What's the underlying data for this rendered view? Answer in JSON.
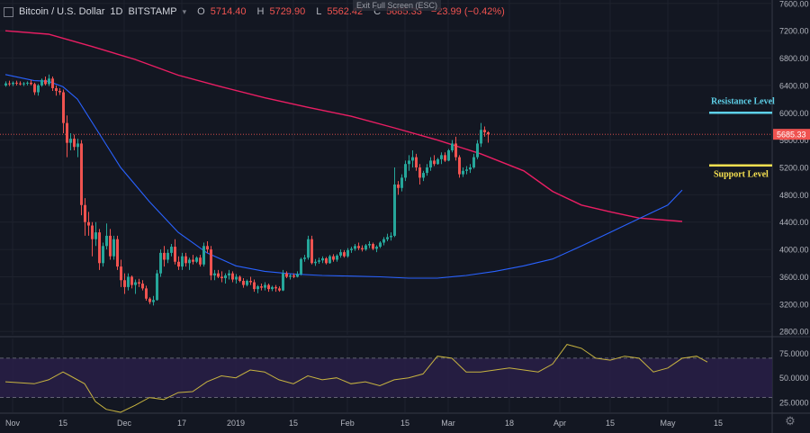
{
  "header": {
    "symbol": "Bitcoin / U.S. Dollar",
    "interval": "1D",
    "exchange": "BITSTAMP",
    "open_label": "O",
    "open": "5714.40",
    "high_label": "H",
    "high": "5729.90",
    "low_label": "L",
    "low": "5562.42",
    "close_label": "C",
    "close": "5685.33",
    "change": "−23.99 (−0.42%)"
  },
  "tooltip": "Exit Full Screen (ESC)",
  "colors": {
    "background": "#131722",
    "up": "#26a69a",
    "down": "#ef5350",
    "ma_fast": "#2962ff",
    "ma_slow": "#e91e63",
    "rsi": "#c8b440",
    "rsi_band": "#2a1f4a",
    "resistance": "#5ed0e8",
    "support": "#f5e050",
    "price_tag": "#ef5350"
  },
  "annotations": {
    "resistance": {
      "label": "Resistance Level",
      "price": 6000
    },
    "support": {
      "label": "Support Level",
      "price": 5230
    }
  },
  "price_tag": "5685.33",
  "chart_data": {
    "type": "candlestick",
    "price_axis": {
      "ticks": [
        "7600.00",
        "7200.00",
        "6800.00",
        "6400.00",
        "6000.00",
        "5600.00",
        "5200.00",
        "4800.00",
        "4400.00",
        "4000.00",
        "3600.00",
        "3200.00",
        "2800.00"
      ],
      "tick_values": [
        7600,
        7200,
        6800,
        6400,
        6000,
        5600,
        5200,
        4800,
        4400,
        4000,
        3600,
        3200,
        2800
      ],
      "range": [
        2750,
        7650
      ]
    },
    "time_axis": {
      "labels": [
        "Nov",
        "15",
        "Dec",
        "17",
        "2019",
        "15",
        "Feb",
        "15",
        "Mar",
        "18",
        "Apr",
        "15",
        "May",
        "15"
      ],
      "label_days": [
        2,
        16,
        33,
        49,
        64,
        80,
        95,
        111,
        123,
        140,
        154,
        168,
        184,
        198
      ],
      "start": "2018-10-30",
      "days": 219
    },
    "candles": [
      [
        6400,
        6460,
        6380,
        6430
      ],
      [
        6430,
        6470,
        6390,
        6420
      ],
      [
        6420,
        6460,
        6390,
        6440
      ],
      [
        6440,
        6470,
        6400,
        6430
      ],
      [
        6430,
        6460,
        6400,
        6420
      ],
      [
        6420,
        6450,
        6390,
        6430
      ],
      [
        6430,
        6460,
        6400,
        6440
      ],
      [
        6440,
        6480,
        6400,
        6420
      ],
      [
        6420,
        6440,
        6260,
        6300
      ],
      [
        6300,
        6420,
        6250,
        6400
      ],
      [
        6400,
        6500,
        6380,
        6480
      ],
      [
        6480,
        6530,
        6400,
        6420
      ],
      [
        6420,
        6560,
        6390,
        6500
      ],
      [
        6500,
        6530,
        6320,
        6360
      ],
      [
        6360,
        6400,
        6250,
        6320
      ],
      [
        6320,
        6360,
        6260,
        6300
      ],
      [
        6300,
        6340,
        5700,
        5850
      ],
      [
        5850,
        5960,
        5350,
        5560
      ],
      [
        5560,
        5700,
        5450,
        5620
      ],
      [
        5620,
        5680,
        5450,
        5500
      ],
      [
        5500,
        5620,
        5350,
        5550
      ],
      [
        5550,
        5600,
        4500,
        4650
      ],
      [
        4650,
        4750,
        4200,
        4400
      ],
      [
        4400,
        4550,
        4200,
        4350
      ],
      [
        4350,
        4400,
        3900,
        4150
      ],
      [
        4150,
        4400,
        4050,
        4250
      ],
      [
        4250,
        4300,
        3700,
        3800
      ],
      [
        3800,
        4100,
        3750,
        4050
      ],
      [
        4050,
        4380,
        4000,
        4200
      ],
      [
        4200,
        4300,
        3850,
        3900
      ],
      [
        3900,
        4200,
        3850,
        4150
      ],
      [
        4150,
        4200,
        3700,
        3750
      ],
      [
        3750,
        3850,
        3450,
        3550
      ],
      [
        3550,
        3650,
        3350,
        3450
      ],
      [
        3450,
        3650,
        3400,
        3600
      ],
      [
        3600,
        3620,
        3430,
        3480
      ],
      [
        3480,
        3560,
        3350,
        3520
      ],
      [
        3520,
        3570,
        3450,
        3500
      ],
      [
        3500,
        3550,
        3400,
        3430
      ],
      [
        3430,
        3470,
        3250,
        3280
      ],
      [
        3280,
        3300,
        3200,
        3230
      ],
      [
        3230,
        3320,
        3180,
        3260
      ],
      [
        3260,
        3700,
        3250,
        3650
      ],
      [
        3650,
        4000,
        3600,
        3950
      ],
      [
        3950,
        4050,
        3750,
        3850
      ],
      [
        3850,
        4000,
        3800,
        3950
      ],
      [
        3950,
        4080,
        3900,
        4040
      ],
      [
        4040,
        4150,
        3780,
        3820
      ],
      [
        3820,
        3900,
        3700,
        3750
      ],
      [
        3750,
        3950,
        3700,
        3900
      ],
      [
        3900,
        3950,
        3750,
        3800
      ],
      [
        3800,
        3880,
        3700,
        3850
      ],
      [
        3850,
        3920,
        3780,
        3820
      ],
      [
        3820,
        3900,
        3800,
        3880
      ],
      [
        3880,
        3920,
        3750,
        3780
      ],
      [
        3780,
        4100,
        3750,
        4050
      ],
      [
        4050,
        4120,
        3950,
        4000
      ],
      [
        4000,
        4050,
        3550,
        3620
      ],
      [
        3620,
        3700,
        3550,
        3650
      ],
      [
        3650,
        3700,
        3580,
        3600
      ],
      [
        3600,
        3680,
        3520,
        3580
      ],
      [
        3580,
        3650,
        3500,
        3620
      ],
      [
        3620,
        3700,
        3560,
        3650
      ],
      [
        3650,
        3680,
        3520,
        3560
      ],
      [
        3560,
        3640,
        3500,
        3600
      ],
      [
        3600,
        3620,
        3520,
        3540
      ],
      [
        3540,
        3580,
        3440,
        3480
      ],
      [
        3480,
        3560,
        3460,
        3540
      ],
      [
        3540,
        3600,
        3480,
        3520
      ],
      [
        3520,
        3560,
        3380,
        3420
      ],
      [
        3420,
        3480,
        3360,
        3460
      ],
      [
        3460,
        3500,
        3400,
        3440
      ],
      [
        3440,
        3520,
        3400,
        3480
      ],
      [
        3480,
        3500,
        3380,
        3420
      ],
      [
        3420,
        3470,
        3390,
        3450
      ],
      [
        3450,
        3480,
        3380,
        3430
      ],
      [
        3430,
        3460,
        3380,
        3400
      ],
      [
        3400,
        3700,
        3390,
        3650
      ],
      [
        3650,
        3680,
        3580,
        3600
      ],
      [
        3600,
        3640,
        3560,
        3620
      ],
      [
        3620,
        3650,
        3580,
        3600
      ],
      [
        3600,
        3680,
        3590,
        3640
      ],
      [
        3640,
        3880,
        3620,
        3860
      ],
      [
        3860,
        3920,
        3820,
        3880
      ],
      [
        3880,
        4200,
        3850,
        4150
      ],
      [
        4150,
        4200,
        3780,
        3800
      ],
      [
        3800,
        3860,
        3760,
        3820
      ],
      [
        3820,
        3880,
        3790,
        3840
      ],
      [
        3840,
        3900,
        3800,
        3870
      ],
      [
        3870,
        3890,
        3780,
        3800
      ],
      [
        3800,
        3920,
        3790,
        3900
      ],
      [
        3900,
        3930,
        3820,
        3850
      ],
      [
        3850,
        3930,
        3820,
        3910
      ],
      [
        3910,
        4000,
        3880,
        3960
      ],
      [
        3960,
        3990,
        3880,
        3900
      ],
      [
        3900,
        4020,
        3880,
        3990
      ],
      [
        3990,
        4040,
        3950,
        4010
      ],
      [
        4010,
        4080,
        3980,
        4050
      ],
      [
        4050,
        4100,
        3990,
        4020
      ],
      [
        4020,
        4060,
        3970,
        4000
      ],
      [
        4000,
        4080,
        3980,
        4060
      ],
      [
        4060,
        4120,
        4020,
        4080
      ],
      [
        4080,
        4100,
        3990,
        4010
      ],
      [
        4010,
        4060,
        3960,
        4040
      ],
      [
        4040,
        4120,
        4020,
        4100
      ],
      [
        4100,
        4180,
        4060,
        4150
      ],
      [
        4150,
        4230,
        4120,
        4180
      ],
      [
        4180,
        4250,
        4130,
        4200
      ],
      [
        4200,
        5200,
        4180,
        4950
      ],
      [
        4950,
        5000,
        4800,
        4900
      ],
      [
        4900,
        5100,
        4850,
        5050
      ],
      [
        5050,
        5300,
        5000,
        5250
      ],
      [
        5250,
        5380,
        5150,
        5300
      ],
      [
        5300,
        5450,
        5200,
        5350
      ],
      [
        5350,
        5400,
        5150,
        5200
      ],
      [
        5200,
        5250,
        4950,
        5050
      ],
      [
        5050,
        5150,
        5000,
        5120
      ],
      [
        5120,
        5250,
        5080,
        5200
      ],
      [
        5200,
        5350,
        5150,
        5300
      ],
      [
        5300,
        5380,
        5220,
        5250
      ],
      [
        5250,
        5340,
        5240,
        5320
      ],
      [
        5320,
        5420,
        5250,
        5380
      ],
      [
        5380,
        5420,
        5280,
        5300
      ],
      [
        5300,
        5470,
        5290,
        5450
      ],
      [
        5450,
        5600,
        5420,
        5550
      ],
      [
        5550,
        5650,
        5300,
        5350
      ],
      [
        5350,
        5380,
        5050,
        5100
      ],
      [
        5100,
        5200,
        5060,
        5150
      ],
      [
        5150,
        5220,
        5100,
        5170
      ],
      [
        5170,
        5250,
        5120,
        5200
      ],
      [
        5200,
        5400,
        5180,
        5350
      ],
      [
        5350,
        5600,
        5320,
        5550
      ],
      [
        5550,
        5850,
        5500,
        5750
      ],
      [
        5750,
        5800,
        5650,
        5714
      ],
      [
        5714,
        5730,
        5562,
        5685
      ]
    ],
    "ma_fast": [
      [
        0,
        6560
      ],
      [
        8,
        6470
      ],
      [
        12,
        6460
      ],
      [
        16,
        6380
      ],
      [
        20,
        6200
      ],
      [
        26,
        5700
      ],
      [
        32,
        5200
      ],
      [
        40,
        4700
      ],
      [
        48,
        4250
      ],
      [
        56,
        3950
      ],
      [
        64,
        3760
      ],
      [
        72,
        3680
      ],
      [
        80,
        3640
      ],
      [
        88,
        3620
      ],
      [
        96,
        3610
      ],
      [
        104,
        3600
      ],
      [
        112,
        3580
      ],
      [
        120,
        3580
      ],
      [
        128,
        3620
      ],
      [
        136,
        3680
      ],
      [
        144,
        3760
      ],
      [
        152,
        3860
      ],
      [
        160,
        4050
      ],
      [
        168,
        4250
      ],
      [
        176,
        4450
      ],
      [
        184,
        4650
      ],
      [
        188,
        4870
      ]
    ],
    "ma_slow": [
      [
        0,
        7200
      ],
      [
        12,
        7150
      ],
      [
        24,
        6970
      ],
      [
        36,
        6780
      ],
      [
        48,
        6550
      ],
      [
        60,
        6380
      ],
      [
        72,
        6220
      ],
      [
        84,
        6080
      ],
      [
        96,
        5950
      ],
      [
        108,
        5780
      ],
      [
        120,
        5600
      ],
      [
        132,
        5400
      ],
      [
        144,
        5150
      ],
      [
        152,
        4850
      ],
      [
        160,
        4650
      ],
      [
        168,
        4550
      ],
      [
        176,
        4460
      ],
      [
        188,
        4410
      ]
    ],
    "rsi": {
      "ticks": [
        "75.0000",
        "50.0000",
        "25.0000"
      ],
      "tick_values": [
        75,
        50,
        25
      ],
      "band": [
        30,
        70
      ],
      "range": [
        15,
        90
      ],
      "values": [
        [
          0,
          46
        ],
        [
          8,
          44
        ],
        [
          12,
          48
        ],
        [
          16,
          56
        ],
        [
          18,
          52
        ],
        [
          22,
          44
        ],
        [
          25,
          26
        ],
        [
          28,
          18
        ],
        [
          32,
          15
        ],
        [
          36,
          22
        ],
        [
          40,
          30
        ],
        [
          44,
          28
        ],
        [
          48,
          35
        ],
        [
          52,
          36
        ],
        [
          56,
          46
        ],
        [
          60,
          52
        ],
        [
          64,
          50
        ],
        [
          68,
          58
        ],
        [
          72,
          56
        ],
        [
          76,
          48
        ],
        [
          80,
          44
        ],
        [
          84,
          52
        ],
        [
          88,
          48
        ],
        [
          92,
          50
        ],
        [
          96,
          44
        ],
        [
          100,
          46
        ],
        [
          104,
          42
        ],
        [
          108,
          48
        ],
        [
          112,
          50
        ],
        [
          116,
          54
        ],
        [
          120,
          72
        ],
        [
          124,
          70
        ],
        [
          128,
          56
        ],
        [
          132,
          56
        ],
        [
          136,
          58
        ],
        [
          140,
          60
        ],
        [
          144,
          58
        ],
        [
          148,
          56
        ],
        [
          152,
          64
        ],
        [
          156,
          84
        ],
        [
          160,
          80
        ],
        [
          164,
          70
        ],
        [
          168,
          68
        ],
        [
          172,
          72
        ],
        [
          176,
          70
        ],
        [
          180,
          56
        ],
        [
          184,
          60
        ],
        [
          188,
          70
        ],
        [
          192,
          72
        ],
        [
          195,
          66
        ]
      ]
    }
  }
}
